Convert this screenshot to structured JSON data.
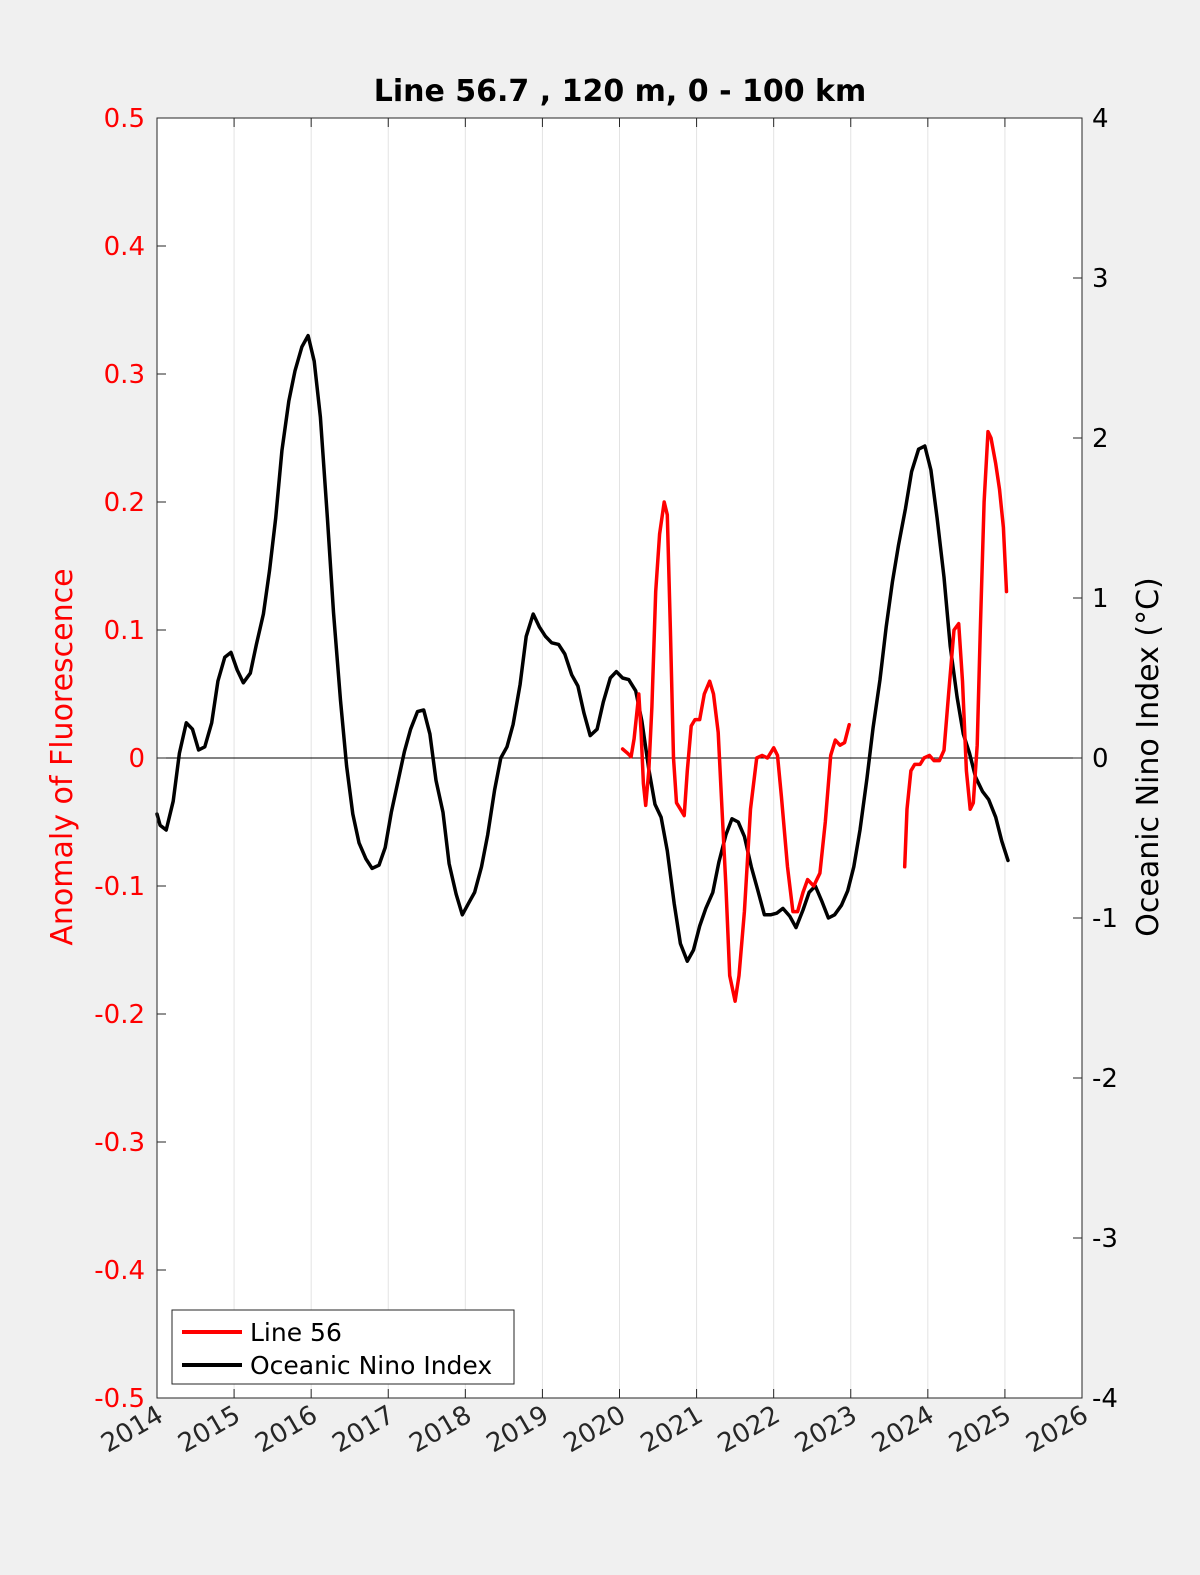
{
  "chart_data": {
    "type": "line",
    "title": "Line 56.7 , 120 m, 0 - 100 km",
    "xlim": [
      2014,
      2026
    ],
    "x_ticks": [
      "2014",
      "2015",
      "2016",
      "2017",
      "2018",
      "2019",
      "2020",
      "2021",
      "2022",
      "2023",
      "2024",
      "2025",
      "2026"
    ],
    "left_axis": {
      "label": "Anomaly of Fluorescence",
      "color": "#ff0000",
      "ylim": [
        -0.5,
        0.5
      ],
      "ticks": [
        0.5,
        0.4,
        0.3,
        0.2,
        0.1,
        0,
        -0.1,
        -0.2,
        -0.3,
        -0.4,
        -0.5
      ],
      "tick_labels": [
        "0.5",
        "0.4",
        "0.3",
        "0.2",
        "0.1",
        "0",
        "-0.1",
        "-0.2",
        "-0.3",
        "-0.4",
        "-0.5"
      ]
    },
    "right_axis": {
      "label": "Oceanic Nino Index (°C)",
      "color": "#000000",
      "ylim": [
        -4,
        4
      ],
      "ticks": [
        4,
        3,
        2,
        1,
        0,
        -1,
        -2,
        -3,
        -4
      ],
      "tick_labels": [
        "4",
        "3",
        "2",
        "1",
        "0",
        "-1",
        "-2",
        "-3",
        "-4"
      ]
    },
    "grid": "vertical",
    "zero_line": true,
    "legend": {
      "placement": "bottom-left"
    },
    "series": [
      {
        "name": "Line 56",
        "axis": "left",
        "color": "#ff0000",
        "segments": [
          [
            [
              2020.04,
              0.007
            ],
            [
              2020.1,
              0.004
            ],
            [
              2020.15,
              0.001
            ],
            [
              2020.19,
              0.015
            ],
            [
              2020.25,
              0.05
            ],
            [
              2020.28,
              0.02
            ],
            [
              2020.31,
              -0.02
            ],
            [
              2020.34,
              -0.037
            ],
            [
              2020.38,
              -0.01
            ],
            [
              2020.42,
              0.04
            ],
            [
              2020.47,
              0.13
            ],
            [
              2020.52,
              0.175
            ],
            [
              2020.58,
              0.2
            ],
            [
              2020.62,
              0.19
            ],
            [
              2020.66,
              0.1
            ],
            [
              2020.7,
              0.0
            ],
            [
              2020.74,
              -0.035
            ],
            [
              2020.79,
              -0.04
            ],
            [
              2020.84,
              -0.045
            ],
            [
              2020.88,
              -0.01
            ],
            [
              2020.93,
              0.025
            ],
            [
              2020.98,
              0.03
            ],
            [
              2021.04,
              0.03
            ],
            [
              2021.1,
              0.05
            ],
            [
              2021.17,
              0.06
            ],
            [
              2021.22,
              0.05
            ],
            [
              2021.28,
              0.02
            ],
            [
              2021.33,
              -0.04
            ],
            [
              2021.38,
              -0.1
            ],
            [
              2021.43,
              -0.17
            ],
            [
              2021.5,
              -0.19
            ],
            [
              2021.55,
              -0.17
            ],
            [
              2021.62,
              -0.12
            ],
            [
              2021.7,
              -0.04
            ],
            [
              2021.78,
              0.0
            ],
            [
              2021.85,
              0.002
            ],
            [
              2021.92,
              0.0
            ],
            [
              2022.0,
              0.008
            ],
            [
              2022.05,
              0.002
            ],
            [
              2022.1,
              -0.03
            ],
            [
              2022.18,
              -0.085
            ],
            [
              2022.25,
              -0.12
            ],
            [
              2022.31,
              -0.12
            ],
            [
              2022.38,
              -0.105
            ],
            [
              2022.44,
              -0.095
            ],
            [
              2022.52,
              -0.1
            ],
            [
              2022.6,
              -0.09
            ],
            [
              2022.67,
              -0.05
            ],
            [
              2022.74,
              0.002
            ],
            [
              2022.8,
              0.014
            ],
            [
              2022.86,
              0.01
            ],
            [
              2022.92,
              0.012
            ],
            [
              2022.98,
              0.026
            ]
          ],
          [
            [
              2023.7,
              -0.085
            ],
            [
              2023.73,
              -0.04
            ],
            [
              2023.78,
              -0.01
            ],
            [
              2023.83,
              -0.005
            ],
            [
              2023.9,
              -0.005
            ],
            [
              2023.95,
              0.0
            ],
            [
              2024.02,
              0.002
            ],
            [
              2024.08,
              -0.002
            ],
            [
              2024.15,
              -0.002
            ],
            [
              2024.21,
              0.006
            ],
            [
              2024.27,
              0.05
            ],
            [
              2024.34,
              0.1
            ],
            [
              2024.4,
              0.105
            ],
            [
              2024.45,
              0.06
            ],
            [
              2024.5,
              -0.01
            ],
            [
              2024.55,
              -0.04
            ],
            [
              2024.59,
              -0.035
            ],
            [
              2024.64,
              0.01
            ],
            [
              2024.68,
              0.1
            ],
            [
              2024.73,
              0.2
            ],
            [
              2024.78,
              0.255
            ],
            [
              2024.82,
              0.25
            ],
            [
              2024.88,
              0.23
            ],
            [
              2024.93,
              0.21
            ],
            [
              2024.98,
              0.18
            ],
            [
              2025.02,
              0.13
            ]
          ]
        ]
      },
      {
        "name": "Oceanic Nino Index",
        "axis": "right",
        "color": "#000000",
        "segments": [
          [
            [
              2014.0,
              -0.35
            ],
            [
              2014.04,
              -0.42
            ],
            [
              2014.12,
              -0.45
            ],
            [
              2014.21,
              -0.27
            ],
            [
              2014.29,
              0.03
            ],
            [
              2014.38,
              0.22
            ],
            [
              2014.46,
              0.18
            ],
            [
              2014.54,
              0.05
            ],
            [
              2014.62,
              0.07
            ],
            [
              2014.71,
              0.22
            ],
            [
              2014.79,
              0.48
            ],
            [
              2014.88,
              0.63
            ],
            [
              2014.96,
              0.66
            ],
            [
              2015.04,
              0.55
            ],
            [
              2015.12,
              0.47
            ],
            [
              2015.21,
              0.53
            ],
            [
              2015.29,
              0.71
            ],
            [
              2015.38,
              0.9
            ],
            [
              2015.46,
              1.17
            ],
            [
              2015.54,
              1.5
            ],
            [
              2015.62,
              1.92
            ],
            [
              2015.71,
              2.23
            ],
            [
              2015.79,
              2.42
            ],
            [
              2015.88,
              2.57
            ],
            [
              2015.96,
              2.64
            ],
            [
              2016.04,
              2.48
            ],
            [
              2016.12,
              2.13
            ],
            [
              2016.21,
              1.5
            ],
            [
              2016.29,
              0.91
            ],
            [
              2016.38,
              0.36
            ],
            [
              2016.46,
              -0.05
            ],
            [
              2016.54,
              -0.35
            ],
            [
              2016.62,
              -0.53
            ],
            [
              2016.71,
              -0.63
            ],
            [
              2016.79,
              -0.69
            ],
            [
              2016.88,
              -0.67
            ],
            [
              2016.96,
              -0.56
            ],
            [
              2017.04,
              -0.34
            ],
            [
              2017.12,
              -0.16
            ],
            [
              2017.21,
              0.04
            ],
            [
              2017.29,
              0.18
            ],
            [
              2017.38,
              0.29
            ],
            [
              2017.46,
              0.3
            ],
            [
              2017.54,
              0.15
            ],
            [
              2017.62,
              -0.14
            ],
            [
              2017.71,
              -0.34
            ],
            [
              2017.79,
              -0.66
            ],
            [
              2017.88,
              -0.85
            ],
            [
              2017.96,
              -0.98
            ],
            [
              2018.04,
              -0.91
            ],
            [
              2018.12,
              -0.84
            ],
            [
              2018.21,
              -0.68
            ],
            [
              2018.29,
              -0.48
            ],
            [
              2018.38,
              -0.2
            ],
            [
              2018.46,
              0.0
            ],
            [
              2018.54,
              0.07
            ],
            [
              2018.62,
              0.21
            ],
            [
              2018.71,
              0.46
            ],
            [
              2018.79,
              0.76
            ],
            [
              2018.88,
              0.9
            ],
            [
              2018.96,
              0.82
            ],
            [
              2019.04,
              0.76
            ],
            [
              2019.12,
              0.72
            ],
            [
              2019.21,
              0.71
            ],
            [
              2019.29,
              0.65
            ],
            [
              2019.38,
              0.52
            ],
            [
              2019.46,
              0.45
            ],
            [
              2019.54,
              0.28
            ],
            [
              2019.62,
              0.14
            ],
            [
              2019.71,
              0.18
            ],
            [
              2019.79,
              0.35
            ],
            [
              2019.88,
              0.5
            ],
            [
              2019.96,
              0.54
            ],
            [
              2020.04,
              0.5
            ],
            [
              2020.12,
              0.49
            ],
            [
              2020.21,
              0.42
            ],
            [
              2020.29,
              0.23
            ],
            [
              2020.38,
              -0.07
            ],
            [
              2020.46,
              -0.29
            ],
            [
              2020.54,
              -0.37
            ],
            [
              2020.62,
              -0.58
            ],
            [
              2020.71,
              -0.91
            ],
            [
              2020.79,
              -1.16
            ],
            [
              2020.88,
              -1.27
            ],
            [
              2020.96,
              -1.2
            ],
            [
              2021.04,
              -1.05
            ],
            [
              2021.12,
              -0.94
            ],
            [
              2021.21,
              -0.84
            ],
            [
              2021.29,
              -0.65
            ],
            [
              2021.38,
              -0.48
            ],
            [
              2021.46,
              -0.38
            ],
            [
              2021.54,
              -0.4
            ],
            [
              2021.62,
              -0.49
            ],
            [
              2021.71,
              -0.68
            ],
            [
              2021.79,
              -0.82
            ],
            [
              2021.88,
              -0.98
            ],
            [
              2021.96,
              -0.98
            ],
            [
              2022.04,
              -0.97
            ],
            [
              2022.12,
              -0.94
            ],
            [
              2022.21,
              -0.99
            ],
            [
              2022.29,
              -1.06
            ],
            [
              2022.38,
              -0.95
            ],
            [
              2022.46,
              -0.84
            ],
            [
              2022.54,
              -0.8
            ],
            [
              2022.62,
              -0.89
            ],
            [
              2022.71,
              -1.0
            ],
            [
              2022.79,
              -0.98
            ],
            [
              2022.88,
              -0.92
            ],
            [
              2022.96,
              -0.83
            ],
            [
              2023.04,
              -0.68
            ],
            [
              2023.12,
              -0.45
            ],
            [
              2023.21,
              -0.13
            ],
            [
              2023.29,
              0.19
            ],
            [
              2023.38,
              0.49
            ],
            [
              2023.46,
              0.82
            ],
            [
              2023.54,
              1.1
            ],
            [
              2023.62,
              1.33
            ],
            [
              2023.71,
              1.56
            ],
            [
              2023.79,
              1.79
            ],
            [
              2023.88,
              1.93
            ],
            [
              2023.96,
              1.95
            ],
            [
              2024.04,
              1.8
            ],
            [
              2024.12,
              1.5
            ],
            [
              2024.21,
              1.13
            ],
            [
              2024.29,
              0.7
            ],
            [
              2024.38,
              0.38
            ],
            [
              2024.46,
              0.15
            ],
            [
              2024.54,
              0.03
            ],
            [
              2024.62,
              -0.12
            ],
            [
              2024.71,
              -0.21
            ],
            [
              2024.79,
              -0.26
            ],
            [
              2024.88,
              -0.37
            ],
            [
              2024.96,
              -0.52
            ],
            [
              2025.04,
              -0.64
            ]
          ]
        ]
      }
    ]
  }
}
